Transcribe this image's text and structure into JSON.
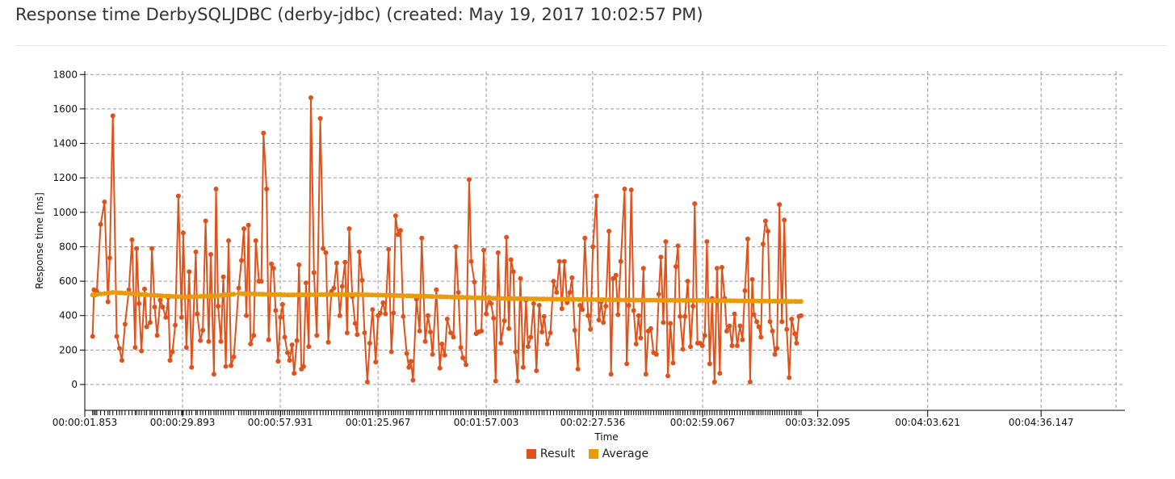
{
  "header": {
    "title": "Response time DerbySQLJDBC (derby-jdbc) (created: May 19, 2017 10:02:57 PM)"
  },
  "chart_data": {
    "type": "line",
    "title": "Response time DerbySQLJDBC (derby-jdbc) (created: May 19, 2017 10:02:57 PM)",
    "xlabel": "Time",
    "ylabel": "Response time [ms]",
    "ylim": [
      -150,
      1820
    ],
    "yticks": [
      0,
      200,
      400,
      600,
      800,
      1000,
      1200,
      1400,
      1600,
      1800
    ],
    "xlim_seconds": [
      1.853,
      300.2
    ],
    "x_tick_labels": [
      "00:00:01.853",
      "00:00:29.893",
      "00:00:57.931",
      "00:01:25.967",
      "00:01:57.003",
      "00:02:27.536",
      "00:02:59.067",
      "00:03:32.095",
      "00:04:03.621",
      "00:04:36.147"
    ],
    "x_tick_seconds": [
      1.853,
      29.893,
      57.931,
      85.967,
      117.003,
      147.536,
      179.067,
      212.095,
      243.621,
      276.147
    ],
    "grid": true,
    "legend_position": "bottom",
    "series": [
      {
        "name": "Result",
        "color": "#e0521b",
        "values": [
          [
            4.1,
            280
          ],
          [
            4.5,
            550
          ],
          [
            4.9,
            520
          ],
          [
            5.3,
            540
          ],
          [
            6.4,
            930
          ],
          [
            7.5,
            1060
          ],
          [
            8.5,
            480
          ],
          [
            9.0,
            735
          ],
          [
            9.9,
            1560
          ],
          [
            11.0,
            280
          ],
          [
            11.8,
            210
          ],
          [
            12.5,
            140
          ],
          [
            13.4,
            350
          ],
          [
            14.5,
            550
          ],
          [
            15.4,
            840
          ],
          [
            16.3,
            215
          ],
          [
            16.7,
            790
          ],
          [
            17.4,
            470
          ],
          [
            18.1,
            195
          ],
          [
            19.0,
            555
          ],
          [
            19.6,
            335
          ],
          [
            20.6,
            360
          ],
          [
            21.1,
            790
          ],
          [
            21.9,
            450
          ],
          [
            22.6,
            285
          ],
          [
            23.5,
            490
          ],
          [
            24.2,
            450
          ],
          [
            25.1,
            390
          ],
          [
            25.8,
            505
          ],
          [
            26.3,
            140
          ],
          [
            27.0,
            190
          ],
          [
            27.8,
            345
          ],
          [
            28.7,
            1095
          ],
          [
            29.6,
            390
          ],
          [
            30.1,
            880
          ],
          [
            31.0,
            215
          ],
          [
            31.8,
            655
          ],
          [
            32.5,
            100
          ],
          [
            33.7,
            770
          ],
          [
            34.1,
            410
          ],
          [
            35.0,
            255
          ],
          [
            35.7,
            315
          ],
          [
            36.5,
            950
          ],
          [
            37.4,
            250
          ],
          [
            38.0,
            755
          ],
          [
            38.9,
            60
          ],
          [
            39.5,
            1135
          ],
          [
            40.1,
            455
          ],
          [
            40.9,
            250
          ],
          [
            41.6,
            625
          ],
          [
            42.3,
            105
          ],
          [
            43.1,
            835
          ],
          [
            43.8,
            110
          ],
          [
            44.6,
            160
          ],
          [
            46.0,
            560
          ],
          [
            46.8,
            720
          ],
          [
            47.5,
            905
          ],
          [
            48.2,
            400
          ],
          [
            48.8,
            925
          ],
          [
            49.4,
            235
          ],
          [
            50.3,
            285
          ],
          [
            50.9,
            835
          ],
          [
            51.8,
            600
          ],
          [
            52.5,
            600
          ],
          [
            53.1,
            1460
          ],
          [
            54.0,
            1135
          ],
          [
            54.6,
            260
          ],
          [
            55.4,
            700
          ],
          [
            56.0,
            675
          ],
          [
            56.6,
            430
          ],
          [
            57.3,
            135
          ],
          [
            58.0,
            390
          ],
          [
            58.6,
            465
          ],
          [
            59.2,
            275
          ],
          [
            60.0,
            185
          ],
          [
            60.6,
            140
          ],
          [
            61.3,
            230
          ],
          [
            61.9,
            65
          ],
          [
            62.7,
            255
          ],
          [
            63.3,
            695
          ],
          [
            64.0,
            90
          ],
          [
            64.6,
            105
          ],
          [
            65.3,
            590
          ],
          [
            66.1,
            220
          ],
          [
            66.7,
            1665
          ],
          [
            67.6,
            650
          ],
          [
            68.4,
            285
          ],
          [
            69.4,
            1545
          ],
          [
            70.2,
            790
          ],
          [
            71.0,
            765
          ],
          [
            71.7,
            245
          ],
          [
            72.6,
            540
          ],
          [
            73.3,
            560
          ],
          [
            74.1,
            705
          ],
          [
            75.0,
            400
          ],
          [
            75.7,
            570
          ],
          [
            76.5,
            710
          ],
          [
            77.1,
            300
          ],
          [
            77.7,
            905
          ],
          [
            78.6,
            510
          ],
          [
            79.4,
            355
          ],
          [
            80.0,
            290
          ],
          [
            80.6,
            770
          ],
          [
            81.4,
            605
          ],
          [
            82.1,
            300
          ],
          [
            82.9,
            15
          ],
          [
            83.6,
            240
          ],
          [
            84.4,
            435
          ],
          [
            85.3,
            130
          ],
          [
            86.0,
            400
          ],
          [
            86.6,
            415
          ],
          [
            87.4,
            475
          ],
          [
            88.1,
            410
          ],
          [
            89.0,
            785
          ],
          [
            89.8,
            190
          ],
          [
            90.4,
            415
          ],
          [
            91.0,
            980
          ],
          [
            91.7,
            870
          ],
          [
            92.4,
            895
          ],
          [
            93.2,
            395
          ],
          [
            94.2,
            180
          ],
          [
            94.8,
            100
          ],
          [
            95.4,
            135
          ],
          [
            96.0,
            25
          ],
          [
            97.0,
            495
          ],
          [
            97.9,
            310
          ],
          [
            98.5,
            850
          ],
          [
            99.5,
            250
          ],
          [
            100.3,
            400
          ],
          [
            101.0,
            305
          ],
          [
            101.6,
            175
          ],
          [
            102.7,
            550
          ],
          [
            103.7,
            95
          ],
          [
            104.3,
            235
          ],
          [
            105.1,
            170
          ],
          [
            105.8,
            380
          ],
          [
            106.8,
            300
          ],
          [
            107.6,
            275
          ],
          [
            108.3,
            800
          ],
          [
            109.0,
            535
          ],
          [
            109.7,
            215
          ],
          [
            110.3,
            155
          ],
          [
            111.2,
            115
          ],
          [
            112.1,
            1190
          ],
          [
            112.7,
            715
          ],
          [
            113.6,
            595
          ],
          [
            114.1,
            295
          ],
          [
            114.8,
            305
          ],
          [
            115.6,
            310
          ],
          [
            116.3,
            780
          ],
          [
            117.0,
            410
          ],
          [
            117.8,
            505
          ],
          [
            118.4,
            470
          ],
          [
            119.1,
            385
          ],
          [
            119.7,
            20
          ],
          [
            120.4,
            765
          ],
          [
            121.2,
            240
          ],
          [
            122.2,
            370
          ],
          [
            122.8,
            855
          ],
          [
            123.5,
            325
          ],
          [
            124.1,
            725
          ],
          [
            124.8,
            655
          ],
          [
            125.4,
            190
          ],
          [
            126.0,
            20
          ],
          [
            126.8,
            615
          ],
          [
            127.6,
            100
          ],
          [
            128.4,
            490
          ],
          [
            129.0,
            220
          ],
          [
            129.8,
            275
          ],
          [
            130.6,
            470
          ],
          [
            131.4,
            80
          ],
          [
            132.2,
            460
          ],
          [
            133.0,
            305
          ],
          [
            133.6,
            395
          ],
          [
            134.5,
            235
          ],
          [
            135.4,
            300
          ],
          [
            136.3,
            600
          ],
          [
            137.2,
            535
          ],
          [
            138.0,
            715
          ],
          [
            138.7,
            440
          ],
          [
            139.4,
            715
          ],
          [
            140.2,
            475
          ],
          [
            141.0,
            535
          ],
          [
            141.6,
            620
          ],
          [
            142.4,
            315
          ],
          [
            143.3,
            90
          ],
          [
            143.9,
            460
          ],
          [
            144.6,
            435
          ],
          [
            145.3,
            850
          ],
          [
            146.2,
            400
          ],
          [
            146.9,
            320
          ],
          [
            147.6,
            800
          ],
          [
            148.6,
            1095
          ],
          [
            149.3,
            375
          ],
          [
            150.0,
            480
          ],
          [
            150.6,
            360
          ],
          [
            151.3,
            455
          ],
          [
            152.2,
            890
          ],
          [
            152.8,
            60
          ],
          [
            153.4,
            615
          ],
          [
            154.2,
            635
          ],
          [
            154.8,
            405
          ],
          [
            155.6,
            715
          ],
          [
            156.7,
            1135
          ],
          [
            157.3,
            120
          ],
          [
            157.9,
            460
          ],
          [
            158.6,
            1130
          ],
          [
            159.3,
            430
          ],
          [
            160.0,
            235
          ],
          [
            160.7,
            400
          ],
          [
            161.3,
            270
          ],
          [
            162.1,
            675
          ],
          [
            162.8,
            60
          ],
          [
            163.5,
            310
          ],
          [
            164.2,
            325
          ],
          [
            165.0,
            185
          ],
          [
            165.8,
            175
          ],
          [
            166.5,
            525
          ],
          [
            167.1,
            740
          ],
          [
            167.8,
            360
          ],
          [
            168.5,
            830
          ],
          [
            169.1,
            50
          ],
          [
            169.8,
            355
          ],
          [
            170.6,
            125
          ],
          [
            171.4,
            685
          ],
          [
            172.0,
            805
          ],
          [
            172.6,
            395
          ],
          [
            173.4,
            205
          ],
          [
            174.0,
            395
          ],
          [
            174.8,
            600
          ],
          [
            175.6,
            220
          ],
          [
            176.3,
            455
          ],
          [
            176.8,
            1050
          ],
          [
            177.6,
            240
          ],
          [
            178.3,
            240
          ],
          [
            179.0,
            225
          ],
          [
            179.7,
            285
          ],
          [
            180.3,
            830
          ],
          [
            181.1,
            120
          ],
          [
            181.8,
            500
          ],
          [
            182.5,
            15
          ],
          [
            183.2,
            675
          ],
          [
            184.0,
            65
          ],
          [
            184.6,
            680
          ],
          [
            185.4,
            500
          ],
          [
            186.0,
            310
          ],
          [
            186.8,
            340
          ],
          [
            187.5,
            225
          ],
          [
            188.2,
            410
          ],
          [
            189.0,
            225
          ],
          [
            189.8,
            340
          ],
          [
            190.5,
            260
          ],
          [
            191.2,
            545
          ],
          [
            192.0,
            845
          ],
          [
            192.7,
            15
          ],
          [
            193.3,
            610
          ],
          [
            193.8,
            405
          ],
          [
            194.6,
            365
          ],
          [
            195.2,
            335
          ],
          [
            195.8,
            275
          ],
          [
            196.4,
            815
          ],
          [
            197.1,
            950
          ],
          [
            197.8,
            890
          ],
          [
            198.4,
            365
          ],
          [
            199.1,
            310
          ],
          [
            199.8,
            175
          ],
          [
            200.4,
            210
          ],
          [
            201.1,
            1045
          ],
          [
            201.8,
            365
          ],
          [
            202.5,
            955
          ],
          [
            203.2,
            320
          ],
          [
            203.9,
            40
          ],
          [
            204.6,
            380
          ],
          [
            205.5,
            295
          ],
          [
            206.0,
            240
          ],
          [
            206.7,
            395
          ],
          [
            207.3,
            400
          ]
        ]
      },
      {
        "name": "Average",
        "color": "#e89b0c",
        "values": [
          [
            4.1,
            520
          ],
          [
            10,
            535
          ],
          [
            20,
            520
          ],
          [
            30,
            508
          ],
          [
            40,
            515
          ],
          [
            46,
            528
          ],
          [
            52,
            525
          ],
          [
            60,
            520
          ],
          [
            70,
            522
          ],
          [
            80,
            522
          ],
          [
            100,
            512
          ],
          [
            120,
            500
          ],
          [
            140,
            495
          ],
          [
            160,
            490
          ],
          [
            180,
            488
          ],
          [
            207.3,
            482
          ]
        ]
      }
    ]
  }
}
